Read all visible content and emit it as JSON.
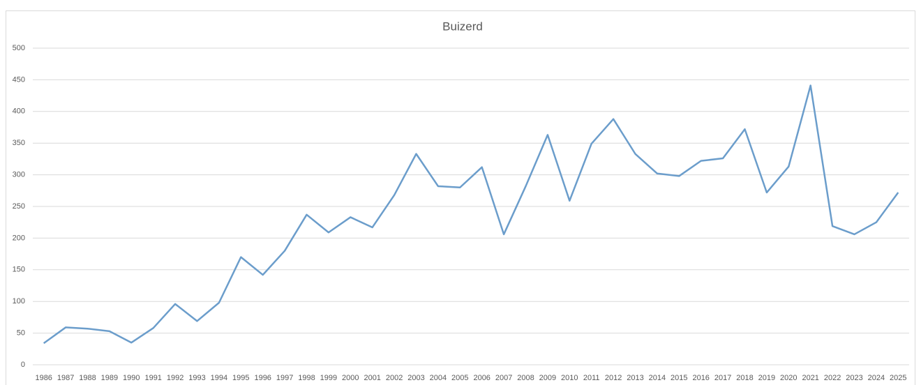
{
  "chart_data": {
    "type": "line",
    "title": "Buizerd",
    "categories": [
      "1986",
      "1987",
      "1988",
      "1989",
      "1990",
      "1991",
      "1992",
      "1993",
      "1994",
      "1995",
      "1996",
      "1997",
      "1998",
      "1999",
      "2000",
      "2001",
      "2002",
      "2003",
      "2004",
      "2005",
      "2006",
      "2007",
      "2008",
      "2009",
      "2010",
      "2011",
      "2012",
      "2013",
      "2014",
      "2015",
      "2016",
      "2017",
      "2018",
      "2019",
      "2020",
      "2021",
      "2022",
      "2023",
      "2024",
      "2025"
    ],
    "series": [
      {
        "name": "Buizerd",
        "color": "#6b9dcb",
        "values": [
          34,
          59,
          57,
          53,
          35,
          58,
          96,
          69,
          98,
          170,
          142,
          180,
          237,
          209,
          233,
          217,
          268,
          333,
          282,
          280,
          312,
          206,
          282,
          363,
          259,
          349,
          388,
          333,
          302,
          298,
          322,
          326,
          372,
          272,
          313,
          441,
          219,
          206,
          225,
          272
        ]
      }
    ],
    "ylim": [
      0,
      500
    ],
    "yticks": [
      0,
      50,
      100,
      150,
      200,
      250,
      300,
      350,
      400,
      450,
      500
    ],
    "grid": true
  }
}
